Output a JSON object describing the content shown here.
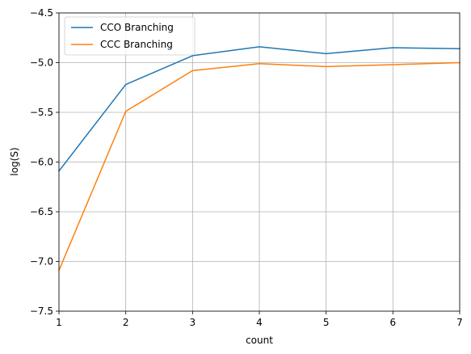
{
  "chart_data": {
    "type": "line",
    "title": "",
    "xlabel": "count",
    "ylabel": "log(S)",
    "xlim": [
      1,
      7
    ],
    "ylim": [
      -7.5,
      -4.5
    ],
    "xticks": [
      1,
      2,
      3,
      4,
      5,
      6,
      7
    ],
    "xtick_labels": [
      "1",
      "2",
      "3",
      "4",
      "5",
      "6",
      "7"
    ],
    "yticks": [
      -7.5,
      -7.0,
      -6.5,
      -6.0,
      -5.5,
      -5.0,
      -4.5
    ],
    "ytick_labels": [
      "−7.5",
      "−7.0",
      "−6.5",
      "−6.0",
      "−5.5",
      "−5.0",
      "−4.5"
    ],
    "grid": true,
    "legend_position": "top-left",
    "x": [
      1,
      2,
      3,
      4,
      5,
      6,
      7
    ],
    "series": [
      {
        "name": "CCO Branching",
        "color": "#1f77b4",
        "values": [
          -6.09,
          -5.22,
          -4.93,
          -4.84,
          -4.91,
          -4.85,
          -4.86
        ]
      },
      {
        "name": "CCC Branching",
        "color": "#ff7f0e",
        "values": [
          -7.09,
          -5.49,
          -5.08,
          -5.01,
          -5.04,
          -5.02,
          -5.0
        ]
      }
    ]
  }
}
